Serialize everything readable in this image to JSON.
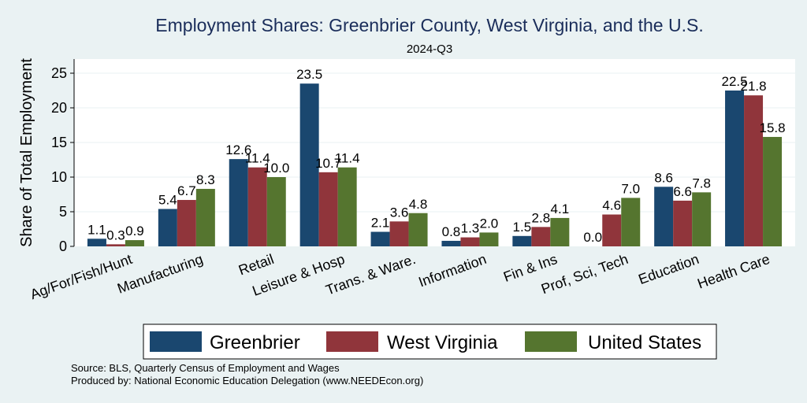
{
  "chart_data": {
    "type": "bar",
    "title": "Employment Shares: Greenbrier County, West Virginia, and the U.S.",
    "subtitle": "2024-Q3",
    "ylabel": "Share of Total Employment",
    "xlabel": "",
    "ylim": [
      0,
      27
    ],
    "yticks": [
      0,
      5,
      10,
      15,
      20,
      25
    ],
    "grid": true,
    "legend_position": "bottom",
    "categories": [
      "Ag/For/Fish/Hunt",
      "Manufacturing",
      "Retail",
      "Leisure & Hosp",
      "Trans. & Ware.",
      "Information",
      "Fin & Ins",
      "Prof, Sci, Tech",
      "Education",
      "Health Care"
    ],
    "series": [
      {
        "name": "Greenbrier",
        "color": "#1a476f",
        "values": [
          1.1,
          5.4,
          12.6,
          23.5,
          2.1,
          0.8,
          1.5,
          0.0,
          8.6,
          22.5
        ],
        "labels": [
          "1.1",
          "5.4",
          "12.6",
          "23.5",
          "2.1",
          "0.8",
          "1.5",
          "0.0",
          "8.6",
          "22.5"
        ]
      },
      {
        "name": "West Virginia",
        "color": "#90353b",
        "values": [
          0.3,
          6.7,
          11.4,
          10.7,
          3.6,
          1.3,
          2.8,
          4.6,
          6.6,
          21.8
        ],
        "labels": [
          "0.3",
          "6.7",
          "11.4",
          "10.7",
          "3.6",
          "1.3",
          "2.8",
          "4.6",
          "6.6",
          "21.8"
        ]
      },
      {
        "name": "United States",
        "color": "#55752f",
        "values": [
          0.9,
          8.3,
          10.0,
          11.4,
          4.8,
          2.0,
          4.1,
          7.0,
          7.8,
          15.8
        ],
        "labels": [
          "0.9",
          "8.3",
          "10.0",
          "11.4",
          "4.8",
          "2.0",
          "4.1",
          "7.0",
          "7.8",
          "15.8"
        ]
      }
    ]
  },
  "notes": {
    "source": "Source: BLS, Quarterly Census of Employment and Wages",
    "produced_by": "Produced by: National Economic Education Delegation (www.NEEDEcon.org)"
  }
}
